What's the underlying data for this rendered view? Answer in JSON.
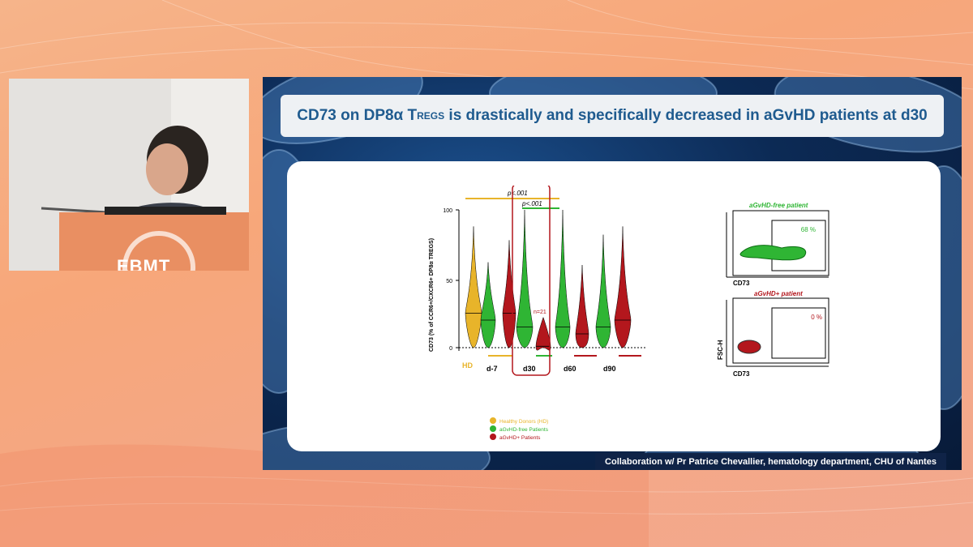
{
  "slide": {
    "title_main": "CD73 on DP8α T",
    "title_sub": "REGS",
    "title_rest": " is drastically and specifically decreased in aGvHD patients at d30",
    "footer": "Collaboration w/ Pr Patrice Chevallier, hematology department, CHU of Nantes"
  },
  "speaker_panel": {
    "logo_text": "EBMT"
  },
  "violin_chart": {
    "ylabel": "CD73 (% of CCR6+/CXCR6+ DP8α TREGS)",
    "yticks": [
      "0",
      "50",
      "100"
    ],
    "groups": [
      "HD",
      "d-7",
      "d30",
      "d60",
      "d90"
    ],
    "annotations": {
      "p1": "p<.001",
      "p2": "p<.001",
      "n": "n=21"
    },
    "legend": [
      "Healthy Donors (HD)",
      "aGvHD-free Patients",
      "aGvHD+ Patients"
    ],
    "colors": {
      "hd": "#e8b42a",
      "free": "#2fb534",
      "pos": "#b3171d"
    }
  },
  "flow_plots": {
    "top_title": "aGvHD-free patient",
    "top_pct": "68 %",
    "bottom_title": "aGvHD+ patient",
    "bottom_pct": "0 %",
    "xlabel": "CD73",
    "ylabel": "FSC-H"
  },
  "chart_data": {
    "type": "violin",
    "ylabel": "CD73 (% of CCR6+/CXCR6+ DP8α TREGS)",
    "ylim": [
      0,
      100
    ],
    "categories": [
      "HD",
      "d-7",
      "d30",
      "d60",
      "d90"
    ],
    "series": [
      {
        "name": "Healthy Donors (HD)",
        "medians": [
          25,
          null,
          null,
          null,
          null
        ]
      },
      {
        "name": "aGvHD-free Patients",
        "medians": [
          null,
          20,
          15,
          15,
          15
        ]
      },
      {
        "name": "aGvHD+ Patients",
        "medians": [
          null,
          25,
          1,
          10,
          20
        ]
      }
    ]
  }
}
